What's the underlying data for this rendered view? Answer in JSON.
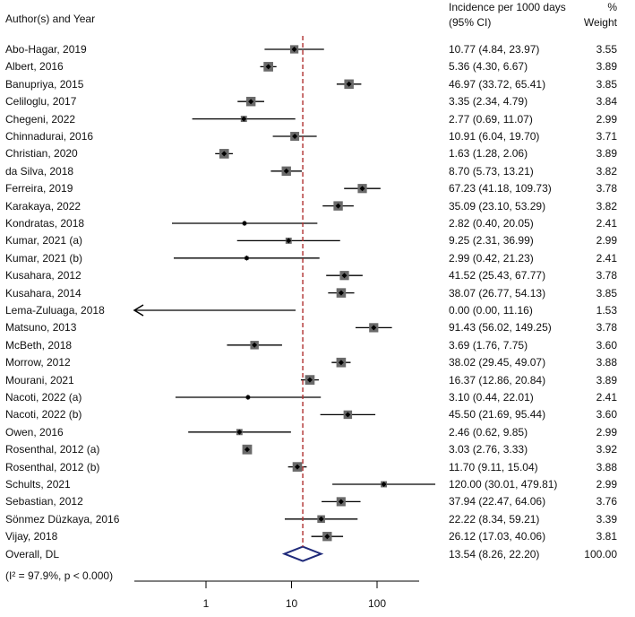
{
  "header": {
    "study_col": "Author(s) and Year",
    "incidence_col_line1": "Incidence per 1000 days",
    "incidence_col_line2": "(95% CI)",
    "weight_col_line1": "%",
    "weight_col_line2": "Weight"
  },
  "heterogeneity_note": "(I² = 97.9%, p < 0.000)",
  "chart_data": {
    "type": "forest",
    "scale": "log",
    "x_ticks": [
      1,
      10,
      100
    ],
    "x_tick_labels": [
      "1",
      "10",
      "100"
    ],
    "reference_line_value": 13.54,
    "studies": [
      {
        "label": "Abo-Hagar, 2019",
        "estimate": 10.77,
        "lower": 4.84,
        "upper": 23.97,
        "ci_text": "10.77 (4.84, 23.97)",
        "weight": 3.55,
        "weight_text": "3.55"
      },
      {
        "label": "Albert, 2016",
        "estimate": 5.36,
        "lower": 4.3,
        "upper": 6.67,
        "ci_text": "5.36 (4.30, 6.67)",
        "weight": 3.89,
        "weight_text": "3.89"
      },
      {
        "label": "Banupriya, 2015",
        "estimate": 46.97,
        "lower": 33.72,
        "upper": 65.41,
        "ci_text": "46.97 (33.72, 65.41)",
        "weight": 3.85,
        "weight_text": "3.85"
      },
      {
        "label": "Celiloglu, 2017",
        "estimate": 3.35,
        "lower": 2.34,
        "upper": 4.79,
        "ci_text": "3.35 (2.34, 4.79)",
        "weight": 3.84,
        "weight_text": "3.84"
      },
      {
        "label": "Chegeni, 2022",
        "estimate": 2.77,
        "lower": 0.69,
        "upper": 11.07,
        "ci_text": "2.77 (0.69, 11.07)",
        "weight": 2.99,
        "weight_text": "2.99"
      },
      {
        "label": "Chinnadurai, 2016",
        "estimate": 10.91,
        "lower": 6.04,
        "upper": 19.7,
        "ci_text": "10.91 (6.04, 19.70)",
        "weight": 3.71,
        "weight_text": "3.71"
      },
      {
        "label": "Christian, 2020",
        "estimate": 1.63,
        "lower": 1.28,
        "upper": 2.06,
        "ci_text": "1.63 (1.28, 2.06)",
        "weight": 3.89,
        "weight_text": "3.89"
      },
      {
        "label": "da Silva, 2018",
        "estimate": 8.7,
        "lower": 5.73,
        "upper": 13.21,
        "ci_text": "8.70 (5.73, 13.21)",
        "weight": 3.82,
        "weight_text": "3.82"
      },
      {
        "label": "Ferreira, 2019",
        "estimate": 67.23,
        "lower": 41.18,
        "upper": 109.73,
        "ci_text": "67.23 (41.18, 109.73)",
        "weight": 3.78,
        "weight_text": "3.78"
      },
      {
        "label": "Karakaya, 2022",
        "estimate": 35.09,
        "lower": 23.1,
        "upper": 53.29,
        "ci_text": "35.09 (23.10, 53.29)",
        "weight": 3.82,
        "weight_text": "3.82"
      },
      {
        "label": "Kondratas, 2018",
        "estimate": 2.82,
        "lower": 0.4,
        "upper": 20.05,
        "ci_text": "2.82 (0.40, 20.05)",
        "weight": 2.41,
        "weight_text": "2.41"
      },
      {
        "label": "Kumar, 2021 (a)",
        "estimate": 9.25,
        "lower": 2.31,
        "upper": 36.99,
        "ci_text": "9.25 (2.31, 36.99)",
        "weight": 2.99,
        "weight_text": "2.99"
      },
      {
        "label": "Kumar, 2021 (b)",
        "estimate": 2.99,
        "lower": 0.42,
        "upper": 21.23,
        "ci_text": "2.99 (0.42, 21.23)",
        "weight": 2.41,
        "weight_text": "2.41"
      },
      {
        "label": "Kusahara, 2012",
        "estimate": 41.52,
        "lower": 25.43,
        "upper": 67.77,
        "ci_text": "41.52 (25.43, 67.77)",
        "weight": 3.78,
        "weight_text": "3.78"
      },
      {
        "label": "Kusahara, 2014",
        "estimate": 38.07,
        "lower": 26.77,
        "upper": 54.13,
        "ci_text": "38.07 (26.77, 54.13)",
        "weight": 3.85,
        "weight_text": "3.85"
      },
      {
        "label": "Lema-Zuluaga, 2018",
        "estimate": 0.0,
        "lower": 0.0,
        "upper": 11.16,
        "ci_text": "0.00 (0.00, 11.16)",
        "weight": 1.53,
        "weight_text": "1.53",
        "truncated_left": true
      },
      {
        "label": "Matsuno, 2013",
        "estimate": 91.43,
        "lower": 56.02,
        "upper": 149.25,
        "ci_text": "91.43 (56.02, 149.25)",
        "weight": 3.78,
        "weight_text": "3.78"
      },
      {
        "label": "McBeth, 2018",
        "estimate": 3.69,
        "lower": 1.76,
        "upper": 7.75,
        "ci_text": "3.69 (1.76, 7.75)",
        "weight": 3.6,
        "weight_text": "3.60"
      },
      {
        "label": "Morrow, 2012",
        "estimate": 38.02,
        "lower": 29.45,
        "upper": 49.07,
        "ci_text": "38.02 (29.45, 49.07)",
        "weight": 3.88,
        "weight_text": "3.88"
      },
      {
        "label": "Mourani, 2021",
        "estimate": 16.37,
        "lower": 12.86,
        "upper": 20.84,
        "ci_text": "16.37 (12.86, 20.84)",
        "weight": 3.89,
        "weight_text": "3.89"
      },
      {
        "label": "Nacoti, 2022 (a)",
        "estimate": 3.1,
        "lower": 0.44,
        "upper": 22.01,
        "ci_text": "3.10 (0.44, 22.01)",
        "weight": 2.41,
        "weight_text": "2.41"
      },
      {
        "label": "Nacoti, 2022 (b)",
        "estimate": 45.5,
        "lower": 21.69,
        "upper": 95.44,
        "ci_text": "45.50 (21.69, 95.44)",
        "weight": 3.6,
        "weight_text": "3.60"
      },
      {
        "label": "Owen, 2016",
        "estimate": 2.46,
        "lower": 0.62,
        "upper": 9.85,
        "ci_text": "2.46 (0.62, 9.85)",
        "weight": 2.99,
        "weight_text": "2.99"
      },
      {
        "label": "Rosenthal, 2012 (a)",
        "estimate": 3.03,
        "lower": 2.76,
        "upper": 3.33,
        "ci_text": "3.03 (2.76, 3.33)",
        "weight": 3.92,
        "weight_text": "3.92"
      },
      {
        "label": "Rosenthal, 2012 (b)",
        "estimate": 11.7,
        "lower": 9.11,
        "upper": 15.04,
        "ci_text": "11.70 (9.11, 15.04)",
        "weight": 3.88,
        "weight_text": "3.88"
      },
      {
        "label": "Schults, 2021",
        "estimate": 120.0,
        "lower": 30.01,
        "upper": 479.81,
        "ci_text": "120.00 (30.01, 479.81)",
        "weight": 2.99,
        "weight_text": "2.99"
      },
      {
        "label": "Sebastian, 2012",
        "estimate": 37.94,
        "lower": 22.47,
        "upper": 64.06,
        "ci_text": "37.94 (22.47, 64.06)",
        "weight": 3.76,
        "weight_text": "3.76"
      },
      {
        "label": "Sönmez Düzkaya, 2016",
        "estimate": 22.22,
        "lower": 8.34,
        "upper": 59.21,
        "ci_text": "22.22 (8.34, 59.21)",
        "weight": 3.39,
        "weight_text": "3.39"
      },
      {
        "label": "Vijay, 2018",
        "estimate": 26.12,
        "lower": 17.03,
        "upper": 40.06,
        "ci_text": "26.12 (17.03, 40.06)",
        "weight": 3.81,
        "weight_text": "3.81"
      }
    ],
    "overall": {
      "label": "Overall, DL",
      "estimate": 13.54,
      "lower": 8.26,
      "upper": 22.2,
      "ci_text": "13.54 (8.26, 22.20)",
      "weight": 100.0,
      "weight_text": "100.00"
    },
    "colors": {
      "ref_line": "#b03030",
      "diamond": "#1f2a7a",
      "marks": "#000000"
    }
  }
}
